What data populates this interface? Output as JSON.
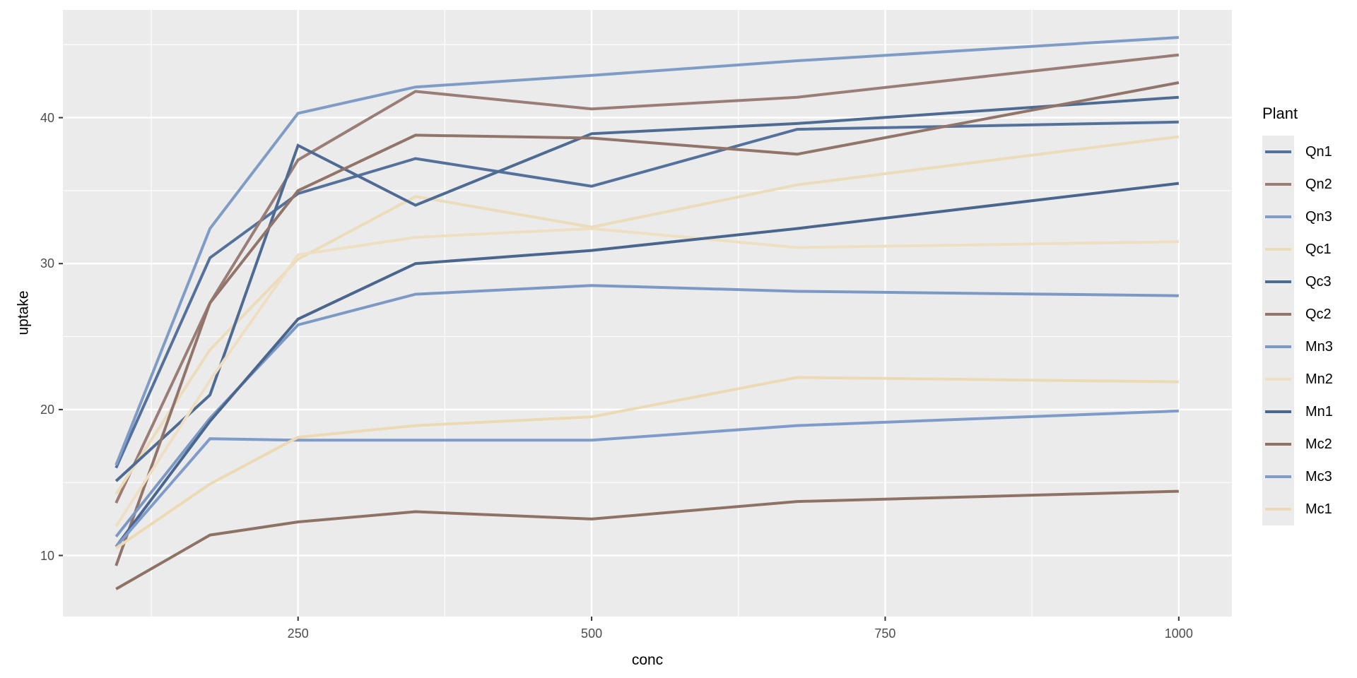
{
  "chart_data": {
    "type": "line",
    "xlabel": "conc",
    "ylabel": "uptake",
    "legend_title": "Plant",
    "legend_position": "right",
    "grid": true,
    "panel_background": "#ebebeb",
    "grid_color": "#ffffff",
    "tick_color": "#333333",
    "tick_label_color": "#4d4d4d",
    "xlim": [
      49.75,
      1045.25
    ],
    "ylim": [
      5.815,
      47.385
    ],
    "x_ticks": [
      250,
      500,
      750,
      1000
    ],
    "x_minor_ticks": [
      125,
      375,
      625,
      875
    ],
    "y_ticks": [
      10,
      20,
      30,
      40
    ],
    "y_minor_ticks": [
      15,
      25,
      35,
      45
    ],
    "x": [
      95,
      175,
      250,
      350,
      500,
      675,
      1000
    ],
    "series": [
      {
        "name": "Qn1",
        "color": "#54719b",
        "values": [
          16.0,
          30.4,
          34.8,
          37.2,
          35.3,
          39.2,
          39.7
        ]
      },
      {
        "name": "Qn2",
        "color": "#997d76",
        "values": [
          13.6,
          27.3,
          37.1,
          41.8,
          40.6,
          41.4,
          44.3
        ]
      },
      {
        "name": "Qn3",
        "color": "#7e9cc6",
        "values": [
          16.2,
          32.4,
          40.3,
          42.1,
          42.9,
          43.9,
          45.5
        ]
      },
      {
        "name": "Qc1",
        "color": "#ebdcba",
        "values": [
          14.2,
          24.1,
          30.3,
          34.6,
          32.5,
          35.4,
          38.7
        ]
      },
      {
        "name": "Qc3",
        "color": "#4e6b93",
        "values": [
          15.1,
          21.0,
          38.1,
          34.0,
          38.9,
          39.6,
          41.4
        ]
      },
      {
        "name": "Qc2",
        "color": "#91746a",
        "values": [
          9.3,
          27.3,
          35.0,
          38.8,
          38.6,
          37.5,
          42.4
        ]
      },
      {
        "name": "Mn3",
        "color": "#7b99c4",
        "values": [
          11.3,
          19.4,
          25.8,
          27.9,
          28.5,
          28.1,
          27.8
        ]
      },
      {
        "name": "Mn2",
        "color": "#eedfc3",
        "values": [
          12.0,
          22.0,
          30.6,
          31.8,
          32.4,
          31.1,
          31.5
        ]
      },
      {
        "name": "Mn1",
        "color": "#4a668e",
        "values": [
          10.6,
          19.2,
          26.2,
          30.0,
          30.9,
          32.4,
          35.5
        ]
      },
      {
        "name": "Mc2",
        "color": "#8e7266",
        "values": [
          7.7,
          11.4,
          12.3,
          13.0,
          12.5,
          13.7,
          14.4
        ]
      },
      {
        "name": "Mc3",
        "color": "#7e9bc9",
        "values": [
          10.6,
          18.0,
          17.9,
          17.9,
          17.9,
          18.9,
          19.9
        ]
      },
      {
        "name": "Mc1",
        "color": "#ecdab4",
        "values": [
          10.5,
          14.9,
          18.1,
          18.9,
          19.5,
          22.2,
          21.9
        ]
      }
    ]
  }
}
